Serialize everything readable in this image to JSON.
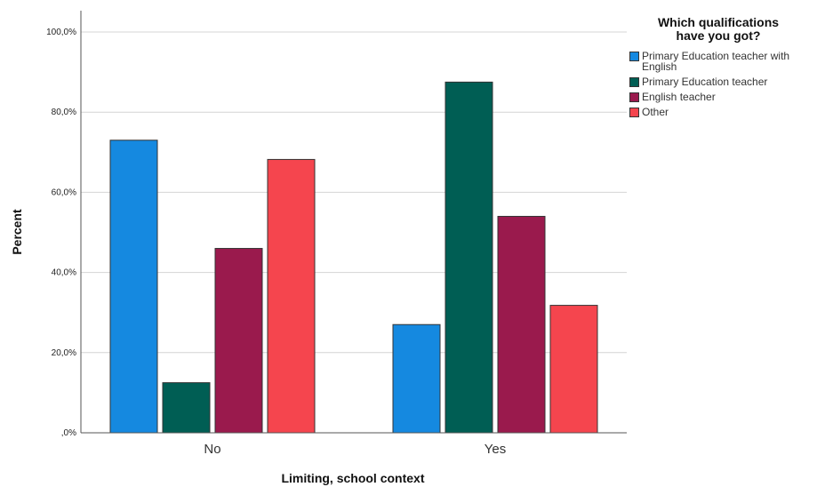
{
  "chart_data": {
    "type": "bar",
    "categories": [
      "No",
      "Yes"
    ],
    "series": [
      {
        "name": "Primary Education teacher with English",
        "values": [
          73.0,
          27.0
        ]
      },
      {
        "name": "Primary Education teacher",
        "values": [
          12.5,
          87.5
        ]
      },
      {
        "name": "English teacher",
        "values": [
          46.0,
          54.0
        ]
      },
      {
        "name": "Other",
        "values": [
          68.2,
          31.8
        ]
      }
    ],
    "xlabel": "Limiting, school context",
    "ylabel": "Percent",
    "ylim": [
      0,
      100
    ],
    "yticks": [
      "100,0%",
      "80,0%",
      "60,0%",
      "40,0%",
      "20,0%",
      ",0%"
    ],
    "ytick_values": [
      100,
      80,
      60,
      40,
      20,
      0
    ],
    "grid": true,
    "legend_position": "top-right",
    "legend_title_lines": [
      "Which qualifications",
      "have you got?"
    ],
    "colors": [
      "#1589e0",
      "#005e54",
      "#9a1a4d",
      "#f5454e"
    ]
  }
}
